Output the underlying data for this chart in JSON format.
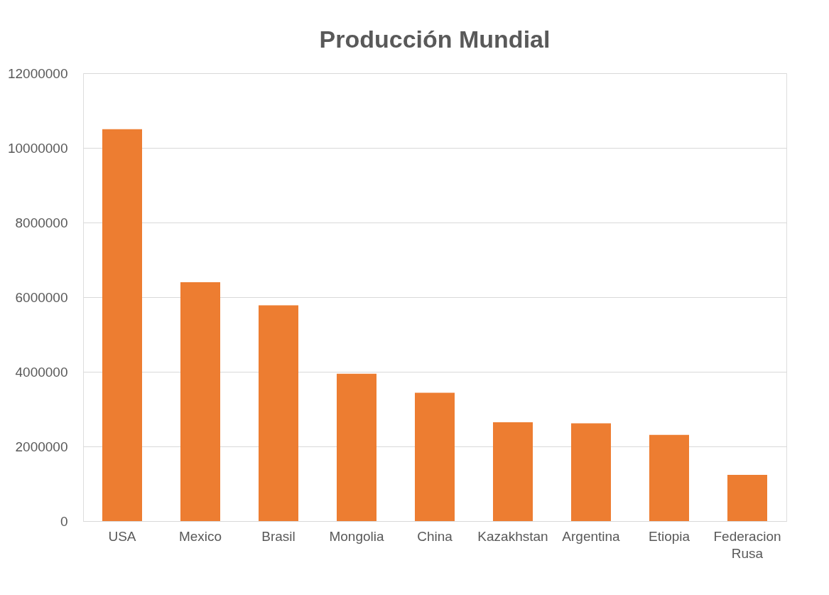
{
  "chart_data": {
    "type": "bar",
    "title": "Producción Mundial",
    "categories": [
      "USA",
      "Mexico",
      "Brasil",
      "Mongolia",
      "China",
      "Kazakhstan",
      "Argentina",
      "Etiopia",
      "Federacion Rusa"
    ],
    "values": [
      10500000,
      6400000,
      5780000,
      3950000,
      3440000,
      2650000,
      2620000,
      2310000,
      1240000
    ],
    "color": "#ed7d31",
    "ylim": [
      0,
      12000000
    ],
    "yticks": [
      0,
      2000000,
      4000000,
      6000000,
      8000000,
      10000000,
      12000000
    ],
    "grid": "y"
  }
}
